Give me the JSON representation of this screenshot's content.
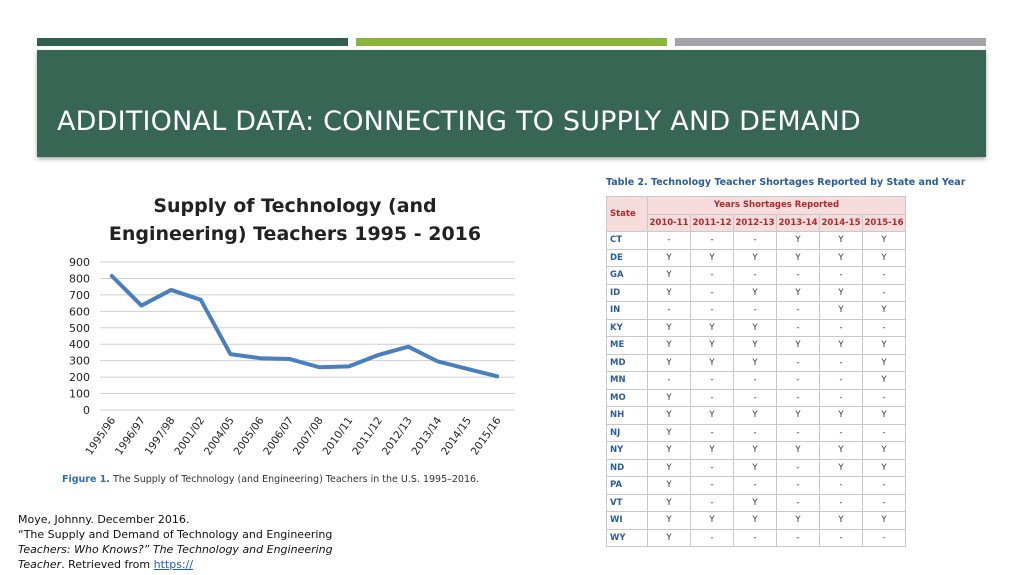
{
  "header": {
    "title": "ADDITIONAL DATA: CONNECTING TO SUPPLY AND DEMAND"
  },
  "chart_data": {
    "type": "line",
    "title_line1": "Supply of Technology (and",
    "title_line2": "Engineering) Teachers 1995 - 2016",
    "categories": [
      "1995/96",
      "1996/97",
      "1997/98",
      "2001/02",
      "2004/05",
      "2005/06",
      "2006/07",
      "2007/08",
      "2010/11",
      "2011/12",
      "2012/13",
      "2013/14",
      "2014/15",
      "2015/16"
    ],
    "values": [
      815,
      635,
      730,
      670,
      340,
      315,
      310,
      260,
      265,
      335,
      385,
      295,
      250,
      205
    ],
    "ylim": [
      0,
      900
    ],
    "yticks": [
      0,
      100,
      200,
      300,
      400,
      500,
      600,
      700,
      800,
      900
    ],
    "color": "#4a7fbf",
    "grid": true,
    "caption_label": "Figure 1.",
    "caption_text": " The Supply of Technology (and Engineering) Teachers in the U.S. 1995–2016."
  },
  "table": {
    "title": "Table 2. Technology Teacher Shortages Reported by State and Year",
    "state_header": "State",
    "group_header": "Years Shortages Reported",
    "years": [
      "2010-11",
      "2011-12",
      "2012-13",
      "2013-14",
      "2014-15",
      "2015-16"
    ],
    "rows": [
      {
        "state": "CT",
        "vals": [
          "-",
          "-",
          "-",
          "Y",
          "Y",
          "Y"
        ]
      },
      {
        "state": "DE",
        "vals": [
          "Y",
          "Y",
          "Y",
          "Y",
          "Y",
          "Y"
        ]
      },
      {
        "state": "GA",
        "vals": [
          "Y",
          "-",
          "-",
          "-",
          "-",
          "-"
        ]
      },
      {
        "state": "ID",
        "vals": [
          "Y",
          "-",
          "Y",
          "Y",
          "Y",
          "-"
        ]
      },
      {
        "state": "IN",
        "vals": [
          "-",
          "-",
          "-",
          "-",
          "Y",
          "Y"
        ]
      },
      {
        "state": "KY",
        "vals": [
          "Y",
          "Y",
          "Y",
          "-",
          "-",
          "-"
        ]
      },
      {
        "state": "ME",
        "vals": [
          "Y",
          "Y",
          "Y",
          "Y",
          "Y",
          "Y"
        ]
      },
      {
        "state": "MD",
        "vals": [
          "Y",
          "Y",
          "Y",
          "-",
          "-",
          "Y"
        ]
      },
      {
        "state": "MN",
        "vals": [
          "-",
          "-",
          "-",
          "-",
          "-",
          "Y"
        ]
      },
      {
        "state": "MO",
        "vals": [
          "Y",
          "-",
          "-",
          "-",
          "-",
          "-"
        ]
      },
      {
        "state": "NH",
        "vals": [
          "Y",
          "Y",
          "Y",
          "Y",
          "Y",
          "Y"
        ]
      },
      {
        "state": "NJ",
        "vals": [
          "Y",
          "-",
          "-",
          "-",
          "-",
          "-"
        ]
      },
      {
        "state": "NY",
        "vals": [
          "Y",
          "Y",
          "Y",
          "Y",
          "Y",
          "Y"
        ]
      },
      {
        "state": "ND",
        "vals": [
          "Y",
          "-",
          "Y",
          "-",
          "Y",
          "Y"
        ]
      },
      {
        "state": "PA",
        "vals": [
          "Y",
          "-",
          "-",
          "-",
          "-",
          "-"
        ]
      },
      {
        "state": "VT",
        "vals": [
          "Y",
          "-",
          "Y",
          "-",
          "-",
          "-"
        ]
      },
      {
        "state": "WI",
        "vals": [
          "Y",
          "Y",
          "Y",
          "Y",
          "Y",
          "Y"
        ]
      },
      {
        "state": "WY",
        "vals": [
          "Y",
          "-",
          "-",
          "-",
          "-",
          "-"
        ]
      }
    ]
  },
  "citation": {
    "line1": "Moye, Johnny. December 2016.",
    "line2": "“The Supply and Demand of Technology and Engineering",
    "line3_italic": "Teachers: Who Knows?” The Technology and Engineering",
    "line4_italic": "Teacher",
    "line4_rest": ". Retrieved from ",
    "link": "https://"
  }
}
